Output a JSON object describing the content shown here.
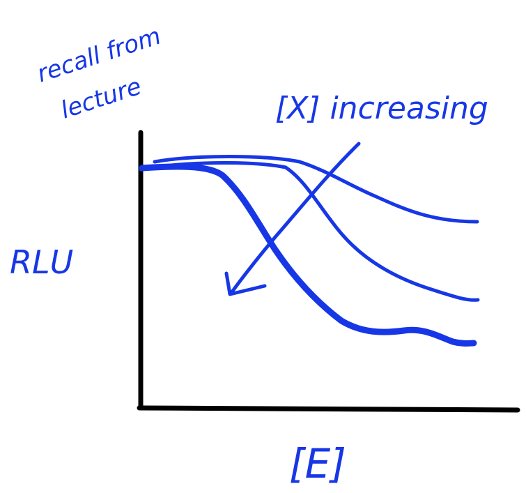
{
  "note": {
    "line1": "recall from",
    "line2": "lecture"
  },
  "annotation": "[X] increasing",
  "axes": {
    "ylabel": "RLU",
    "xlabel": "[E]"
  },
  "colors": {
    "ink": "#1737e6",
    "axis": "#000000",
    "background": "#ffffff"
  },
  "curves": [
    "sigmoid-low-X",
    "sigmoid-mid-X",
    "sigmoid-high-X"
  ]
}
